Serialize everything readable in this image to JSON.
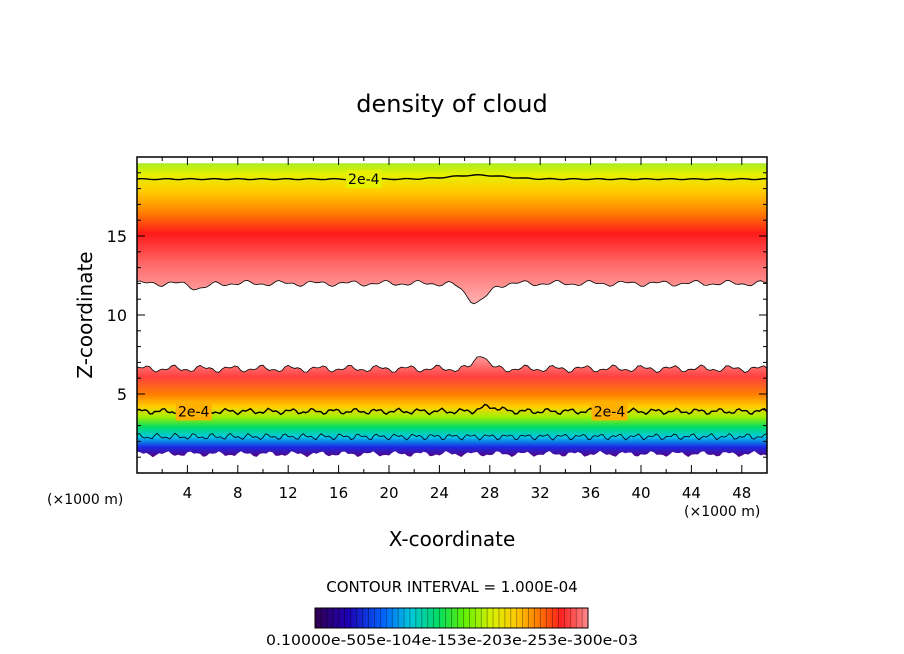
{
  "chart_data": {
    "type": "heatmap",
    "title": "density of cloud",
    "xlabel": "X-coordinate",
    "ylabel": "Z-coordinate",
    "x_unit_left": "(×1000 m)",
    "x_unit_right": "(×1000 m)",
    "xlim": [
      0,
      50
    ],
    "ylim": [
      0,
      20
    ],
    "x_ticks": [
      4,
      8,
      12,
      16,
      20,
      24,
      28,
      32,
      36,
      40,
      44,
      48
    ],
    "y_ticks": [
      5,
      10,
      15
    ],
    "contour_interval_text": "CONTOUR INTERVAL = 1.000E-04",
    "contour_labels": [
      {
        "text": "2e-4",
        "x": 18.0,
        "z": 18.6
      },
      {
        "text": "2e-4",
        "x": 4.5,
        "z": 3.9
      },
      {
        "text": "2e-4",
        "x": 37.5,
        "z": 3.9
      }
    ],
    "layers": [
      {
        "name": "upper cloud",
        "z_bottom": 12.0,
        "z_top": 19.6,
        "peak_z": 14.8,
        "top_value_color": "#a8ee22"
      },
      {
        "name": "lower cloud",
        "z_bottom": 1.2,
        "z_top": 6.6,
        "peak_z": 5.6
      }
    ],
    "colorbar_label": "0.10000e-505e-104e-153e-203e-253e-300e-03",
    "colorbar_colors": [
      "#320050",
      "#1e00b4",
      "#0064ff",
      "#00c8dc",
      "#00dc64",
      "#64f000",
      "#dcf000",
      "#ffc800",
      "#ff7800",
      "#ff2020",
      "#ff8c8c"
    ],
    "grid": false
  }
}
